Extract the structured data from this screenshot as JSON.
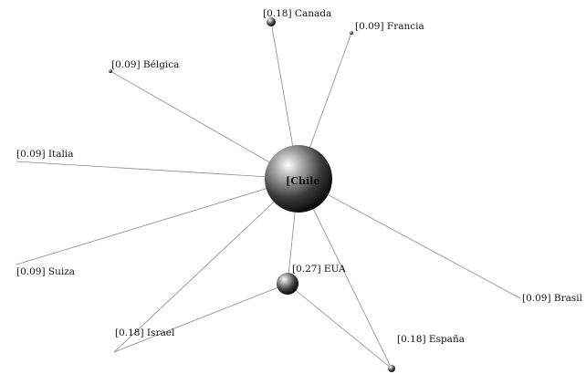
{
  "graph": {
    "center": {
      "label": "[Chile"
    },
    "nodes": [
      {
        "id": "canada",
        "label": "[0.18] Canada",
        "weight": 0.18
      },
      {
        "id": "francia",
        "label": "[0.09] Francia",
        "weight": 0.09
      },
      {
        "id": "belgica",
        "label": "[0.09] Bélgica",
        "weight": 0.09
      },
      {
        "id": "italia",
        "label": "[0.09] Italia",
        "weight": 0.09
      },
      {
        "id": "suiza",
        "label": "[0.09] Suiza",
        "weight": 0.09
      },
      {
        "id": "eua",
        "label": "[0.27] EUA",
        "weight": 0.27
      },
      {
        "id": "brasil",
        "label": "[0.09] Brasil",
        "weight": 0.09
      },
      {
        "id": "israel",
        "label": "[0.18] Israel",
        "weight": 0.18
      },
      {
        "id": "espana",
        "label": "[0.18] España",
        "weight": 0.18
      }
    ],
    "edges": [
      [
        "chile",
        "canada"
      ],
      [
        "chile",
        "francia"
      ],
      [
        "chile",
        "belgica"
      ],
      [
        "chile",
        "italia"
      ],
      [
        "chile",
        "suiza"
      ],
      [
        "chile",
        "eua"
      ],
      [
        "chile",
        "brasil"
      ],
      [
        "chile",
        "israel"
      ],
      [
        "chile",
        "espana"
      ],
      [
        "eua",
        "israel"
      ],
      [
        "eua",
        "espana"
      ]
    ]
  }
}
